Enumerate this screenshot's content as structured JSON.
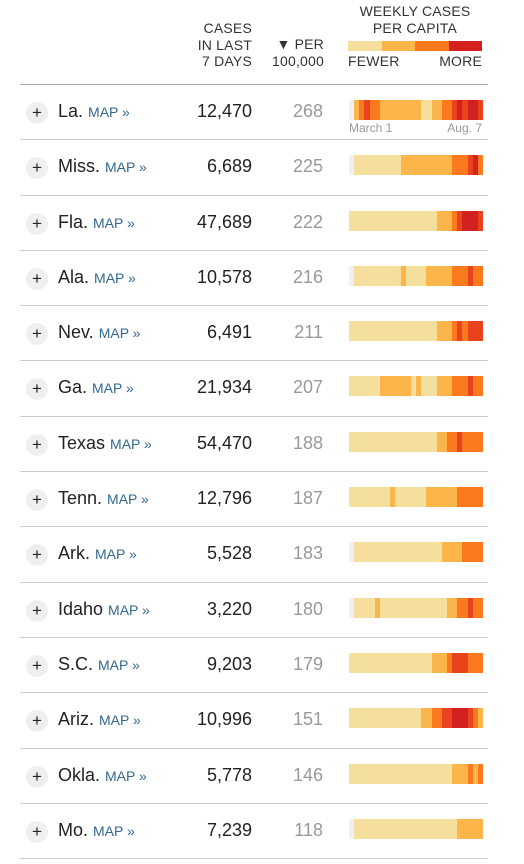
{
  "header": {
    "cases_label_line1": "CASES",
    "cases_label_line2": "IN LAST",
    "cases_label_line3": "7 DAYS",
    "per_label_line1": "▼ PER",
    "per_label_line2": "100,000",
    "weekly_label_line1": "WEEKLY CASES",
    "weekly_label_line2": "PER CAPITA",
    "legend_fewer": "FEWER",
    "legend_more": "MORE",
    "legend_colors": [
      "#f5df9c",
      "#fcb54a",
      "#fb7a1e",
      "#d2211f"
    ]
  },
  "date_start": "March 1",
  "date_end": "Aug. 7",
  "map_label": "MAP »",
  "expand_label": "+",
  "rows": [
    {
      "state": "La.",
      "cases": "12,470",
      "per": "268",
      "heat": [
        0,
        2,
        3,
        4,
        3,
        3,
        2,
        2,
        2,
        2,
        2,
        2,
        2,
        2,
        1,
        1,
        2,
        2,
        3,
        3,
        4,
        5,
        4,
        5,
        5,
        4
      ]
    },
    {
      "state": "Miss.",
      "cases": "6,689",
      "per": "225",
      "heat": [
        0,
        1,
        1,
        1,
        1,
        1,
        1,
        1,
        1,
        1,
        2,
        2,
        2,
        2,
        2,
        2,
        2,
        2,
        2,
        2,
        3,
        3,
        3,
        4,
        5,
        3
      ]
    },
    {
      "state": "Fla.",
      "cases": "47,689",
      "per": "222",
      "heat": [
        1,
        1,
        1,
        1,
        1,
        1,
        1,
        1,
        1,
        1,
        1,
        1,
        1,
        1,
        1,
        1,
        1,
        2,
        2,
        2,
        3,
        4,
        5,
        5,
        5,
        4
      ]
    },
    {
      "state": "Ala.",
      "cases": "10,578",
      "per": "216",
      "heat": [
        0,
        1,
        1,
        1,
        1,
        1,
        1,
        1,
        1,
        1,
        2,
        1,
        1,
        1,
        1,
        2,
        2,
        2,
        2,
        2,
        3,
        3,
        3,
        4,
        3,
        3
      ]
    },
    {
      "state": "Nev.",
      "cases": "6,491",
      "per": "211",
      "heat": [
        1,
        1,
        1,
        1,
        1,
        1,
        1,
        1,
        1,
        1,
        1,
        1,
        1,
        1,
        1,
        1,
        1,
        2,
        2,
        2,
        3,
        4,
        3,
        4,
        4,
        4
      ]
    },
    {
      "state": "Ga.",
      "cases": "21,934",
      "per": "207",
      "heat": [
        1,
        1,
        1,
        1,
        1,
        1,
        2,
        2,
        2,
        2,
        2,
        2,
        1,
        2,
        1,
        1,
        1,
        2,
        2,
        2,
        3,
        3,
        3,
        4,
        3,
        3
      ]
    },
    {
      "state": "Texas",
      "cases": "54,470",
      "per": "188",
      "heat": [
        1,
        1,
        1,
        1,
        1,
        1,
        1,
        1,
        1,
        1,
        1,
        1,
        1,
        1,
        1,
        1,
        1,
        2,
        2,
        3,
        3,
        4,
        3,
        3,
        3,
        3
      ]
    },
    {
      "state": "Tenn.",
      "cases": "12,796",
      "per": "187",
      "heat": [
        1,
        1,
        1,
        1,
        1,
        1,
        1,
        1,
        2,
        1,
        1,
        1,
        1,
        1,
        1,
        2,
        2,
        2,
        2,
        2,
        2,
        3,
        3,
        3,
        3,
        3
      ]
    },
    {
      "state": "Ark.",
      "cases": "5,528",
      "per": "183",
      "heat": [
        0,
        1,
        1,
        1,
        1,
        1,
        1,
        1,
        1,
        1,
        1,
        1,
        1,
        1,
        1,
        1,
        1,
        1,
        2,
        2,
        2,
        2,
        3,
        3,
        3,
        3
      ]
    },
    {
      "state": "Idaho",
      "cases": "3,220",
      "per": "180",
      "heat": [
        0,
        1,
        1,
        1,
        1,
        2,
        1,
        1,
        1,
        1,
        1,
        1,
        1,
        1,
        1,
        1,
        1,
        1,
        1,
        2,
        2,
        3,
        3,
        4,
        3,
        3
      ]
    },
    {
      "state": "S.C.",
      "cases": "9,203",
      "per": "179",
      "heat": [
        1,
        1,
        1,
        1,
        1,
        1,
        1,
        1,
        1,
        1,
        1,
        1,
        1,
        1,
        1,
        1,
        2,
        2,
        2,
        3,
        4,
        4,
        4,
        3,
        3,
        3
      ]
    },
    {
      "state": "Ariz.",
      "cases": "10,996",
      "per": "151",
      "heat": [
        1,
        1,
        1,
        1,
        1,
        1,
        1,
        1,
        1,
        1,
        1,
        1,
        1,
        1,
        2,
        2,
        3,
        3,
        4,
        4,
        5,
        5,
        5,
        4,
        3,
        2
      ]
    },
    {
      "state": "Okla.",
      "cases": "5,778",
      "per": "146",
      "heat": [
        1,
        1,
        1,
        1,
        1,
        1,
        1,
        1,
        1,
        1,
        1,
        1,
        1,
        1,
        1,
        1,
        1,
        1,
        1,
        1,
        2,
        2,
        2,
        3,
        2,
        3
      ]
    },
    {
      "state": "Mo.",
      "cases": "7,239",
      "per": "118",
      "heat": [
        0,
        1,
        1,
        1,
        1,
        1,
        1,
        1,
        1,
        1,
        1,
        1,
        1,
        1,
        1,
        1,
        1,
        1,
        1,
        1,
        1,
        2,
        2,
        2,
        2,
        2
      ]
    }
  ],
  "heat_colors": [
    "#f0f0f0",
    "#f5df9c",
    "#fcb54a",
    "#fb7a1e",
    "#e9421e",
    "#d2211f"
  ]
}
